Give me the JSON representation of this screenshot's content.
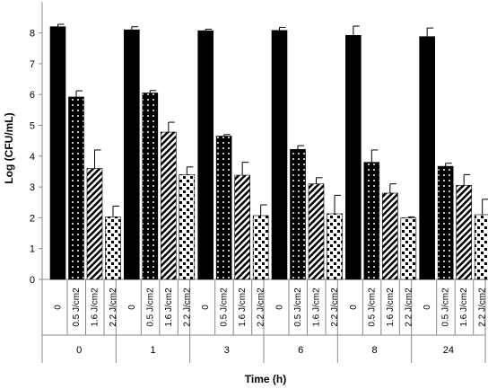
{
  "chart_data": {
    "type": "bar",
    "xlabel": "Time (h)",
    "ylabel": "Log (CFU/mL)",
    "ylim": [
      0,
      9
    ],
    "yticks": [
      0,
      1,
      2,
      3,
      4,
      5,
      6,
      7,
      8
    ],
    "grid": false,
    "legend": "none",
    "treatments": [
      "0",
      "0.5 J/cm2",
      "1.6 J/cm2",
      "2.2 J/cm2"
    ],
    "patterns": [
      "solid-black",
      "white-dots-on-black",
      "diagonal-stripes",
      "black-checker-on-white"
    ],
    "groups": [
      {
        "label": "0",
        "values": [
          8.2,
          5.92,
          3.6,
          2.03
        ],
        "errors": [
          0.08,
          0.2,
          0.6,
          0.35
        ]
      },
      {
        "label": "1",
        "values": [
          8.1,
          6.05,
          4.78,
          3.4
        ],
        "errors": [
          0.1,
          0.08,
          0.32,
          0.25
        ]
      },
      {
        "label": "3",
        "values": [
          8.07,
          4.65,
          3.38,
          2.07
        ],
        "errors": [
          0.05,
          0.05,
          0.42,
          0.35
        ]
      },
      {
        "label": "6",
        "values": [
          8.08,
          4.22,
          3.1,
          2.13
        ],
        "errors": [
          0.1,
          0.12,
          0.2,
          0.6
        ]
      },
      {
        "label": "8",
        "values": [
          7.92,
          3.8,
          2.8,
          2.0
        ],
        "errors": [
          0.3,
          0.4,
          0.3,
          0.03
        ]
      },
      {
        "label": "24",
        "values": [
          7.88,
          3.67,
          3.05,
          2.1
        ],
        "errors": [
          0.28,
          0.1,
          0.35,
          0.5
        ]
      }
    ]
  }
}
